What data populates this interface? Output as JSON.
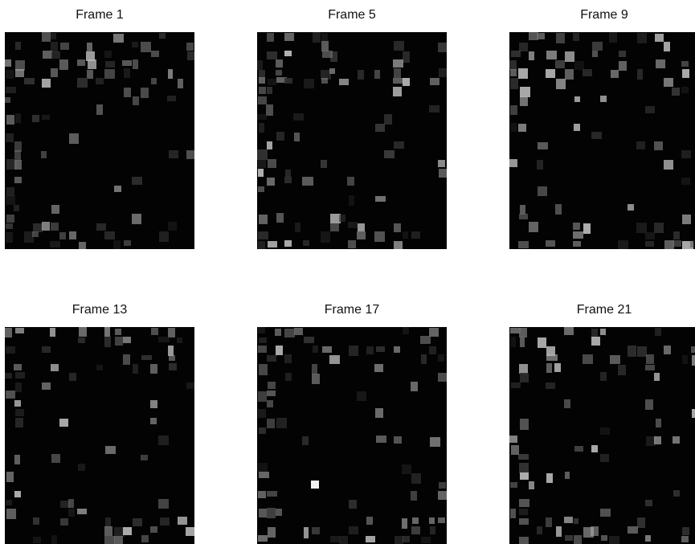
{
  "frames": [
    {
      "title": "Frame 1"
    },
    {
      "title": "Frame 5"
    },
    {
      "title": "Frame 9"
    },
    {
      "title": "Frame 13"
    },
    {
      "title": "Frame 17"
    },
    {
      "title": "Frame 21"
    }
  ],
  "colors": {
    "background": "#030303",
    "speckle_light": "#b9b9b9",
    "speckle_mid": "#6e6e6e",
    "speckle_dark": "#2f2f2f",
    "highlight": "#f2f2f2"
  }
}
